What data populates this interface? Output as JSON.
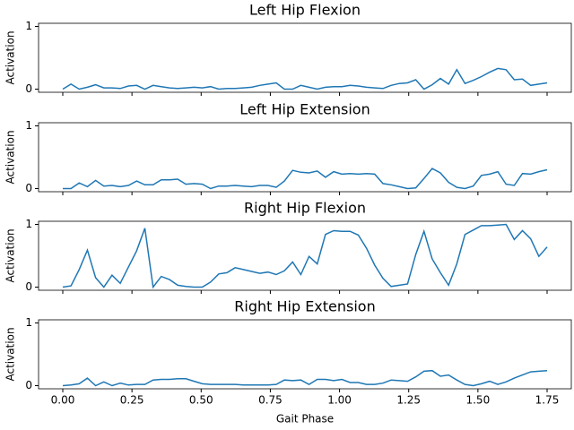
{
  "chart_data": {
    "type": "line",
    "xlabel": "Gait Phase",
    "ylabel": "Activation",
    "x": [
      0,
      0.0297,
      0.0593,
      0.089,
      0.1186,
      0.1483,
      0.178,
      0.2076,
      0.2373,
      0.2669,
      0.2966,
      0.3263,
      0.3559,
      0.3856,
      0.4153,
      0.4449,
      0.4746,
      0.5042,
      0.5339,
      0.5636,
      0.5932,
      0.6229,
      0.6525,
      0.6822,
      0.7119,
      0.7415,
      0.7712,
      0.8008,
      0.8305,
      0.8602,
      0.8898,
      0.9195,
      0.9492,
      0.9788,
      1.0085,
      1.0381,
      1.0678,
      1.0975,
      1.1271,
      1.1568,
      1.1864,
      1.2161,
      1.2458,
      1.2754,
      1.3051,
      1.3347,
      1.3644,
      1.3941,
      1.4237,
      1.4534,
      1.4831,
      1.5127,
      1.5424,
      1.572,
      1.6017,
      1.6314,
      1.661,
      1.6907,
      1.7203,
      1.75
    ],
    "xlim": [
      -0.0875,
      1.8375
    ],
    "xticks": [
      {
        "value": 0,
        "label": "0.00"
      },
      {
        "value": 0.25,
        "label": "0.25"
      },
      {
        "value": 0.5,
        "label": "0.50"
      },
      {
        "value": 0.75,
        "label": "0.75"
      },
      {
        "value": 1,
        "label": "1.00"
      },
      {
        "value": 1.25,
        "label": "1.25"
      },
      {
        "value": 1.5,
        "label": "1.50"
      },
      {
        "value": 1.75,
        "label": "1.75"
      }
    ],
    "ylim": [
      -0.05,
      1.05
    ],
    "yticks": [
      0,
      1
    ],
    "series": [
      {
        "name": "Left Hip Flexion",
        "color": "#1f77b4",
        "values": [
          0,
          0.08,
          0,
          0.03,
          0.07,
          0.02,
          0.02,
          0.01,
          0.05,
          0.06,
          0,
          0.06,
          0.04,
          0.02,
          0.01,
          0.02,
          0.03,
          0.02,
          0.04,
          0,
          0.01,
          0.01,
          0.02,
          0.03,
          0.06,
          0.08,
          0.1,
          0,
          0,
          0.06,
          0.03,
          0,
          0.03,
          0.04,
          0.04,
          0.06,
          0.05,
          0.03,
          0.02,
          0.01,
          0.06,
          0.09,
          0.1,
          0.15,
          0,
          0.07,
          0.17,
          0.08,
          0.31,
          0.09,
          0.14,
          0.2,
          0.27,
          0.33,
          0.31,
          0.15,
          0.16,
          0.06,
          0.08,
          0.1
        ]
      },
      {
        "name": "Left Hip Extension",
        "color": "#1f77b4",
        "values": [
          0,
          0,
          0.09,
          0.03,
          0.13,
          0.04,
          0.05,
          0.03,
          0.05,
          0.12,
          0.06,
          0.06,
          0.14,
          0.14,
          0.15,
          0.07,
          0.08,
          0.07,
          0,
          0.04,
          0.04,
          0.05,
          0.04,
          0.03,
          0.05,
          0.05,
          0.02,
          0.12,
          0.29,
          0.26,
          0.25,
          0.28,
          0.18,
          0.27,
          0.23,
          0.24,
          0.23,
          0.24,
          0.23,
          0.08,
          0.06,
          0.03,
          0,
          0.01,
          0.16,
          0.32,
          0.25,
          0.1,
          0.02,
          0,
          0.04,
          0.21,
          0.23,
          0.27,
          0.07,
          0.05,
          0.24,
          0.23,
          0.27,
          0.3
        ]
      },
      {
        "name": "Right Hip Flexion",
        "color": "#1f77b4",
        "values": [
          0,
          0.02,
          0.28,
          0.59,
          0.15,
          0,
          0.19,
          0.06,
          0.32,
          0.58,
          0.94,
          0,
          0.17,
          0.12,
          0.03,
          0.01,
          0,
          0,
          0.08,
          0.21,
          0.23,
          0.31,
          0.28,
          0.25,
          0.22,
          0.24,
          0.2,
          0.26,
          0.4,
          0.2,
          0.49,
          0.37,
          0.84,
          0.9,
          0.89,
          0.89,
          0.83,
          0.62,
          0.35,
          0.14,
          0.01,
          0.03,
          0.05,
          0.52,
          0.89,
          0.45,
          0.23,
          0.03,
          0.37,
          0.84,
          0.91,
          0.98,
          0.98,
          0.99,
          1,
          0.76,
          0.9,
          0.77,
          0.49,
          0.64
        ]
      },
      {
        "name": "Right Hip Extension",
        "color": "#1f77b4",
        "values": [
          0,
          0.01,
          0.03,
          0.12,
          0,
          0.06,
          0,
          0.04,
          0.01,
          0.02,
          0.02,
          0.09,
          0.1,
          0.1,
          0.11,
          0.11,
          0.07,
          0.03,
          0.02,
          0.02,
          0.02,
          0.02,
          0.01,
          0.01,
          0.01,
          0.01,
          0.02,
          0.09,
          0.08,
          0.09,
          0.02,
          0.1,
          0.1,
          0.08,
          0.1,
          0.05,
          0.05,
          0.02,
          0.02,
          0.04,
          0.09,
          0.08,
          0.07,
          0.14,
          0.23,
          0.24,
          0.15,
          0.17,
          0.09,
          0.02,
          0,
          0.03,
          0.07,
          0.02,
          0.06,
          0.12,
          0.17,
          0.22,
          0.23,
          0.24
        ]
      }
    ]
  }
}
